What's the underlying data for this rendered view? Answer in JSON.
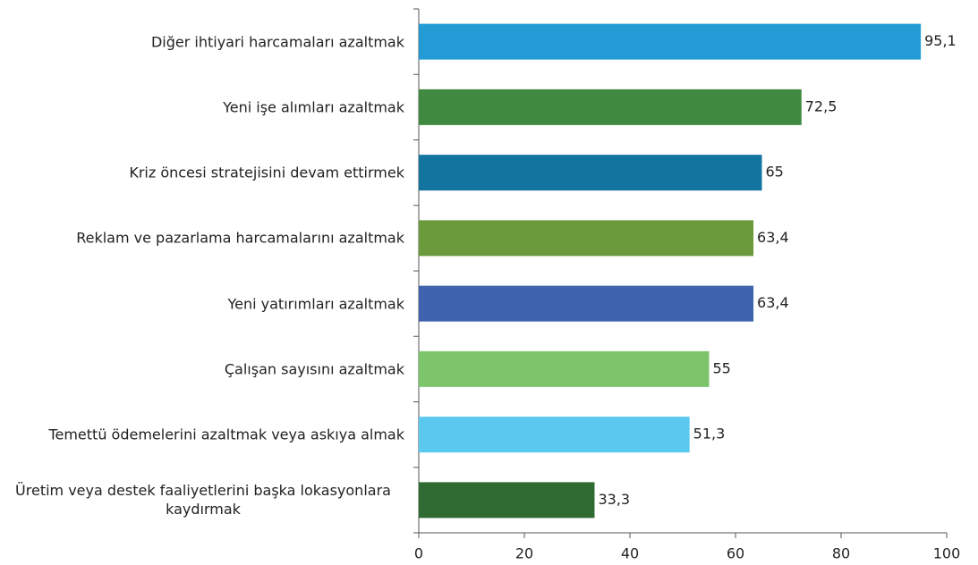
{
  "chart_data": {
    "type": "barh",
    "categories": [
      "Diğer ihtiyari harcamaları azaltmak",
      "Yeni işe alımları azaltmak",
      "Kriz öncesi stratejisini devam ettirmek",
      "Reklam ve pazarlama harcamalarını azaltmak",
      "Yeni yatırımları azaltmak",
      "Çalışan sayısını azaltmak",
      "Temettü ödemelerini azaltmak veya askıya almak",
      "Üretim veya destek faaliyetlerini başka lokasyonlara kaydırmak"
    ],
    "values": [
      95.1,
      72.5,
      65,
      63.4,
      63.4,
      55,
      51.3,
      33.3
    ],
    "value_labels": [
      "95,1",
      "72,5",
      "65",
      "63,4",
      "63,4",
      "55",
      "51,3",
      "33,3"
    ],
    "colors": [
      "#239bd4",
      "#3f8a40",
      "#1374a0",
      "#6a9a3c",
      "#3f63ae",
      "#7dc56b",
      "#5bc8f0",
      "#2f6a33"
    ],
    "xlim": [
      0,
      100
    ],
    "xticks": [
      0,
      20,
      40,
      60,
      80,
      100
    ]
  }
}
